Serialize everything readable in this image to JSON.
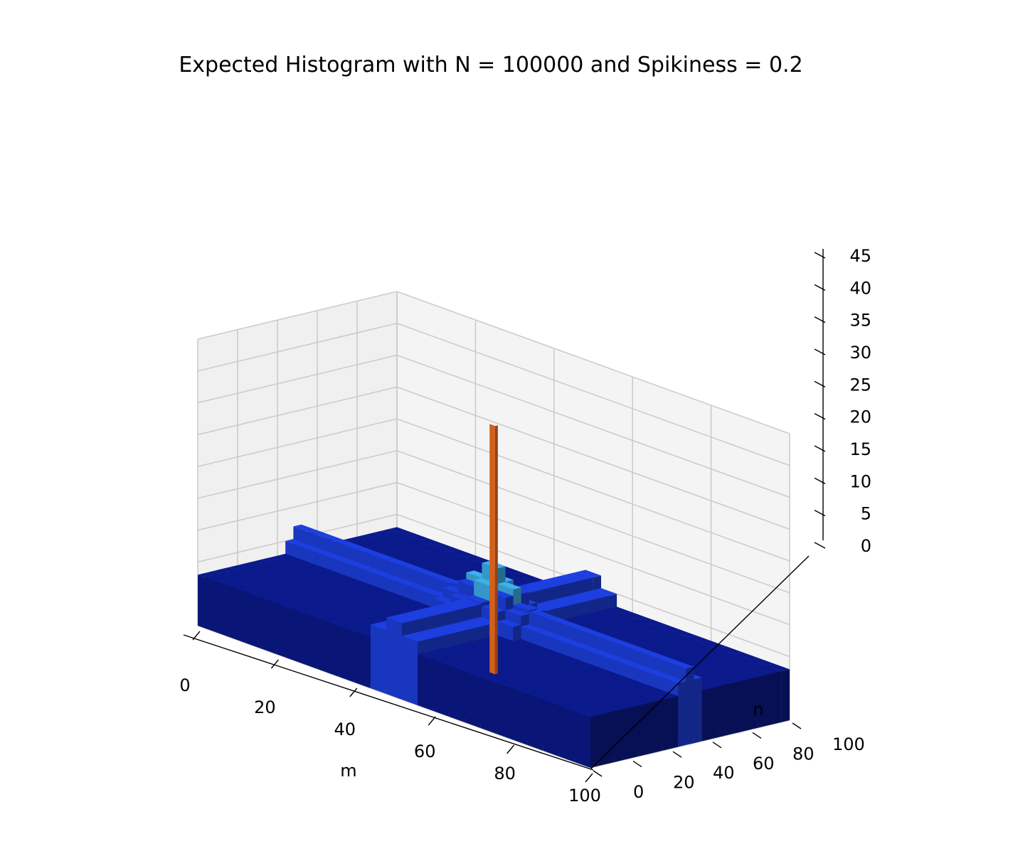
{
  "chart_data": {
    "type": "3d-bar",
    "title": "Expected Histogram with N = 100000 and Spikiness = 0.2",
    "xlabel": "m",
    "ylabel": "n",
    "zlabel": "",
    "xlim": [
      0,
      100
    ],
    "ylim": [
      0,
      100
    ],
    "zlim": [
      0,
      45
    ],
    "x_ticks": [
      "0",
      "20",
      "40",
      "60",
      "80",
      "100"
    ],
    "y_ticks": [
      "0",
      "20",
      "40",
      "60",
      "80",
      "100"
    ],
    "z_ticks": [
      "0",
      "5",
      "10",
      "15",
      "20",
      "25",
      "30",
      "35",
      "40",
      "45"
    ],
    "surface": {
      "description_values": {
        "base_level": 8,
        "cross_ridge_level": 12,
        "center_peak_level": 17,
        "center": [
          50,
          50
        ]
      }
    },
    "spike": {
      "m": 50,
      "n": 50,
      "value": 39
    },
    "colors": {
      "base": "#0b1a8c",
      "ridge": "#1d3fe0",
      "peak": "#3fb0ea",
      "spike": "#d2601a",
      "pane_left": "#f0f0f0",
      "pane_right": "#f4f4f4",
      "pane_floor": "#f7f7f7",
      "grid": "#cccccc"
    }
  }
}
